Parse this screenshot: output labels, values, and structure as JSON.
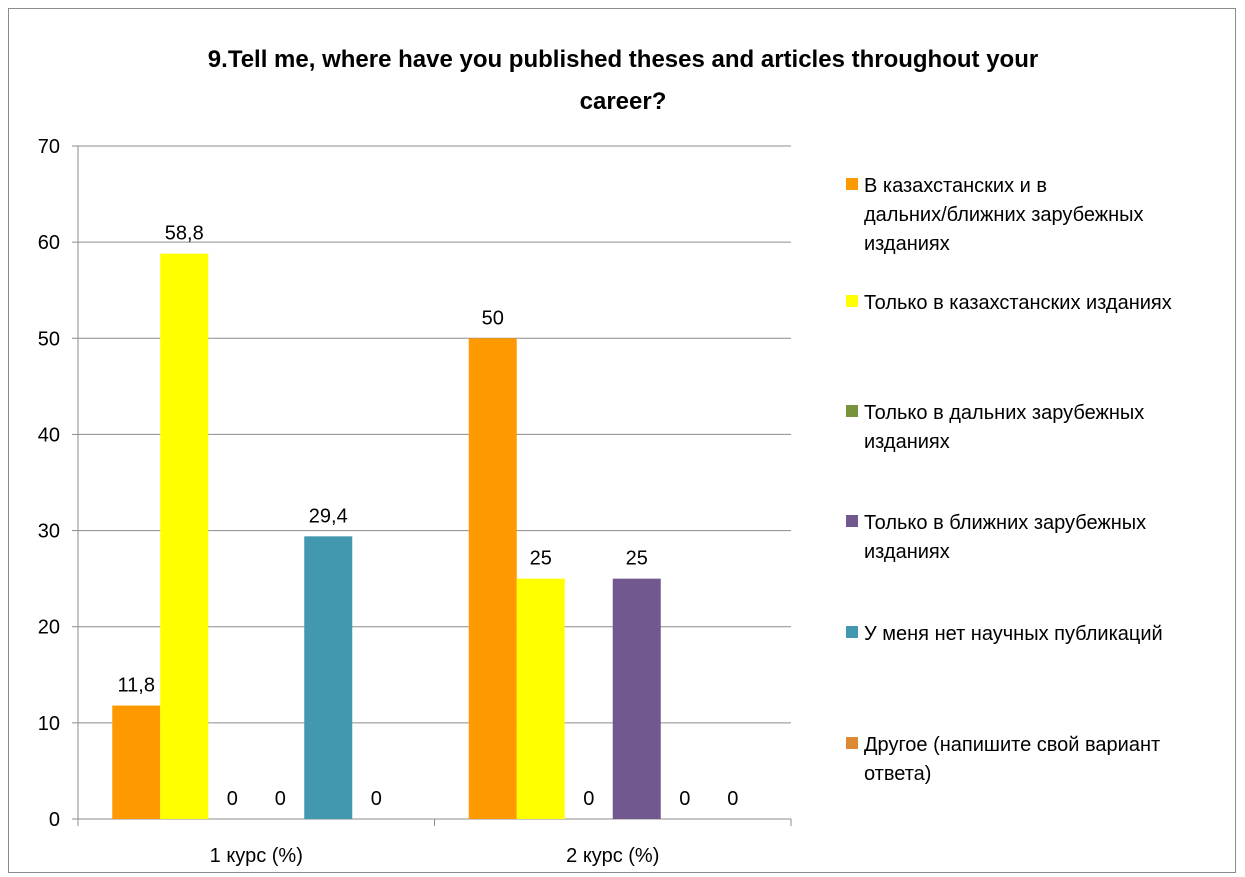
{
  "chart_data": {
    "type": "bar",
    "title": "9.Tell me, where have you published theses and articles throughout your career?",
    "title_lines": [
      "9.Tell me, where have you published theses and articles throughout your",
      "career?"
    ],
    "categories": [
      "1 курс (%)",
      "2 курс (%)"
    ],
    "ylim": [
      0,
      70
    ],
    "yticks": [
      0,
      10,
      20,
      30,
      40,
      50,
      60,
      70
    ],
    "grid": true,
    "legend_position": "right",
    "series": [
      {
        "name": "В казахстанских и в дальних/ближних зарубежных изданиях",
        "legend_lines": [
          "В казахстанских и в",
          "дальних/ближних зарубежных",
          "изданиях"
        ],
        "color": "#ff9900",
        "values": [
          11.8,
          50
        ],
        "labels": [
          "11,8",
          "50"
        ]
      },
      {
        "name": "Только в казахстанских изданиях",
        "legend_lines": [
          "Только в казахстанских изданиях"
        ],
        "color": "#ffff00",
        "values": [
          58.8,
          25
        ],
        "labels": [
          "58,8",
          "25"
        ]
      },
      {
        "name": "Только в дальних зарубежных изданиях",
        "legend_lines": [
          "Только в дальних зарубежных",
          "изданиях"
        ],
        "color": "#77933c",
        "values": [
          0,
          0
        ],
        "labels": [
          "0",
          "0"
        ]
      },
      {
        "name": "Только в ближних зарубежных изданиях",
        "legend_lines": [
          "Только в ближних зарубежных",
          "изданиях"
        ],
        "color": "#71588f",
        "values": [
          0,
          25
        ],
        "labels": [
          "0",
          "25"
        ]
      },
      {
        "name": "У меня нет научных публикаций",
        "legend_lines": [
          "У меня нет научных публикаций"
        ],
        "color": "#4198af",
        "values": [
          29.4,
          0
        ],
        "labels": [
          "29,4",
          "0"
        ]
      },
      {
        "name": "Другое (напишите свой вариант ответа)",
        "legend_lines": [
          "Другое (напишите свой вариант",
          "ответа)"
        ],
        "color": "#dd8833",
        "values": [
          0,
          0
        ],
        "labels": [
          "0",
          "0"
        ]
      }
    ]
  }
}
